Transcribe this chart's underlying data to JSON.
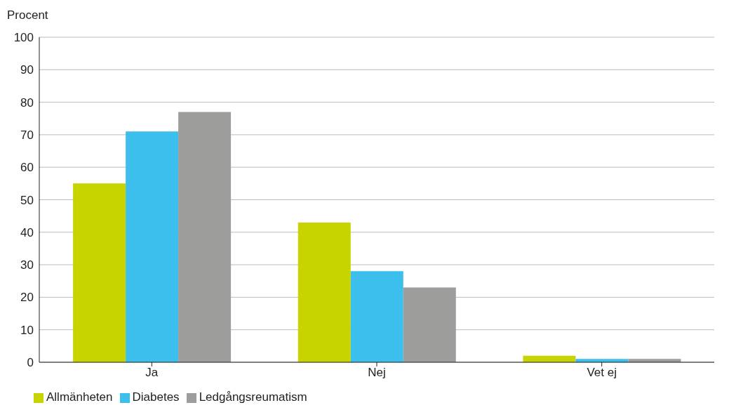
{
  "chart_data": {
    "type": "bar",
    "ylabel": "Procent",
    "categories": [
      "Ja",
      "Nej",
      "Vet ej"
    ],
    "series": [
      {
        "name": "Allmänheten",
        "color": "#c8d400",
        "values": [
          55,
          43,
          2
        ]
      },
      {
        "name": "Diabetes",
        "color": "#3dbfee",
        "values": [
          71,
          28,
          1
        ]
      },
      {
        "name": "Ledgångsreumatism",
        "color": "#9d9d9c",
        "values": [
          77,
          23,
          1
        ]
      }
    ],
    "ylim": [
      0,
      100
    ],
    "yticks": [
      0,
      10,
      20,
      30,
      40,
      50,
      60,
      70,
      80,
      90,
      100
    ],
    "grid": "y",
    "legend": "bottom left"
  }
}
